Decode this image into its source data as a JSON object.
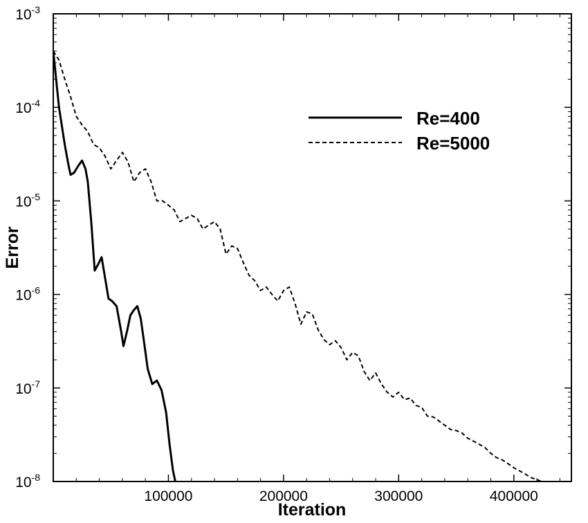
{
  "chart_data": {
    "type": "line",
    "title": "",
    "xlabel": "Iteration",
    "ylabel": "Error",
    "xlim": [
      0,
      450000
    ],
    "ylim": [
      1e-08,
      0.001
    ],
    "yscale": "log",
    "grid": false,
    "legend_position": "top-right",
    "x_ticks": [
      {
        "value": 100000,
        "label": "100000"
      },
      {
        "value": 200000,
        "label": "200000"
      },
      {
        "value": 300000,
        "label": "300000"
      },
      {
        "value": 400000,
        "label": "400000"
      }
    ],
    "y_ticks": [
      {
        "value": 1e-08,
        "base": "10",
        "exp": "-8"
      },
      {
        "value": 1e-07,
        "base": "10",
        "exp": "-7"
      },
      {
        "value": 1e-06,
        "base": "10",
        "exp": "-6"
      },
      {
        "value": 1e-05,
        "base": "10",
        "exp": "-5"
      },
      {
        "value": 0.0001,
        "base": "10",
        "exp": "-4"
      },
      {
        "value": 0.001,
        "base": "10",
        "exp": "-3"
      }
    ],
    "series": [
      {
        "name": "Re=400",
        "style": "solid",
        "color": "#000000",
        "points": [
          [
            0,
            0.0004
          ],
          [
            5000,
            0.0001
          ],
          [
            10000,
            4e-05
          ],
          [
            13000,
            2.5e-05
          ],
          [
            15000,
            1.9e-05
          ],
          [
            18000,
            2e-05
          ],
          [
            22000,
            2.4e-05
          ],
          [
            25000,
            2.7e-05
          ],
          [
            28000,
            2.2e-05
          ],
          [
            30000,
            1.6e-05
          ],
          [
            33000,
            6e-06
          ],
          [
            36000,
            1.8e-06
          ],
          [
            39000,
            2.1e-06
          ],
          [
            42000,
            2.5e-06
          ],
          [
            45000,
            1.5e-06
          ],
          [
            48000,
            9e-07
          ],
          [
            51000,
            8.5e-07
          ],
          [
            55000,
            7.5e-07
          ],
          [
            59000,
            4e-07
          ],
          [
            61000,
            2.8e-07
          ],
          [
            64000,
            4e-07
          ],
          [
            67000,
            6e-07
          ],
          [
            70000,
            6.8e-07
          ],
          [
            73000,
            7.5e-07
          ],
          [
            76000,
            5.5e-07
          ],
          [
            79000,
            3e-07
          ],
          [
            82000,
            1.6e-07
          ],
          [
            86000,
            1.1e-07
          ],
          [
            90000,
            1.2e-07
          ],
          [
            94000,
            9.5e-08
          ],
          [
            98000,
            5.5e-08
          ],
          [
            101000,
            2.5e-08
          ],
          [
            104000,
            1.3e-08
          ],
          [
            106000,
            1e-08
          ]
        ]
      },
      {
        "name": "Re=5000",
        "style": "dashed",
        "color": "#000000",
        "points": [
          [
            0,
            0.0004
          ],
          [
            5000,
            0.00032
          ],
          [
            10000,
            0.0002
          ],
          [
            15000,
            0.00013
          ],
          [
            20000,
            8e-05
          ],
          [
            25000,
            6.5e-05
          ],
          [
            30000,
            5.5e-05
          ],
          [
            35000,
            4e-05
          ],
          [
            40000,
            3.7e-05
          ],
          [
            45000,
            3e-05
          ],
          [
            50000,
            2.2e-05
          ],
          [
            55000,
            2.7e-05
          ],
          [
            60000,
            3.3e-05
          ],
          [
            65000,
            2.6e-05
          ],
          [
            70000,
            1.6e-05
          ],
          [
            75000,
            2e-05
          ],
          [
            80000,
            2.2e-05
          ],
          [
            85000,
            1.6e-05
          ],
          [
            90000,
            1e-05
          ],
          [
            95000,
            1e-05
          ],
          [
            100000,
            9e-06
          ],
          [
            105000,
            8e-06
          ],
          [
            110000,
            6e-06
          ],
          [
            115000,
            6.5e-06
          ],
          [
            120000,
            7e-06
          ],
          [
            125000,
            6.5e-06
          ],
          [
            130000,
            5e-06
          ],
          [
            135000,
            5.5e-06
          ],
          [
            140000,
            6e-06
          ],
          [
            145000,
            5e-06
          ],
          [
            150000,
            2.7e-06
          ],
          [
            155000,
            3.3e-06
          ],
          [
            160000,
            3.1e-06
          ],
          [
            165000,
            2.2e-06
          ],
          [
            170000,
            1.6e-06
          ],
          [
            175000,
            1.4e-06
          ],
          [
            180000,
            1.1e-06
          ],
          [
            185000,
            1.2e-06
          ],
          [
            190000,
            1e-06
          ],
          [
            195000,
            8.5e-07
          ],
          [
            200000,
            1.1e-06
          ],
          [
            205000,
            1.2e-06
          ],
          [
            210000,
            8e-07
          ],
          [
            215000,
            4.8e-07
          ],
          [
            220000,
            6.5e-07
          ],
          [
            225000,
            6.2e-07
          ],
          [
            230000,
            4.2e-07
          ],
          [
            235000,
            3.3e-07
          ],
          [
            240000,
            2.9e-07
          ],
          [
            245000,
            3.2e-07
          ],
          [
            250000,
            2.7e-07
          ],
          [
            255000,
            2e-07
          ],
          [
            260000,
            2.4e-07
          ],
          [
            265000,
            2.2e-07
          ],
          [
            270000,
            1.5e-07
          ],
          [
            275000,
            1.2e-07
          ],
          [
            280000,
            1.45e-07
          ],
          [
            285000,
            1.1e-07
          ],
          [
            290000,
            9e-08
          ],
          [
            295000,
            8e-08
          ],
          [
            300000,
            9e-08
          ],
          [
            305000,
            7.5e-08
          ],
          [
            310000,
            7.8e-08
          ],
          [
            315000,
            6.5e-08
          ],
          [
            320000,
            6.2e-08
          ],
          [
            325000,
            5e-08
          ],
          [
            330000,
            4.9e-08
          ],
          [
            340000,
            4e-08
          ],
          [
            345000,
            3.6e-08
          ],
          [
            350000,
            3.5e-08
          ],
          [
            355000,
            3.3e-08
          ],
          [
            360000,
            2.9e-08
          ],
          [
            365000,
            2.7e-08
          ],
          [
            370000,
            2.5e-08
          ],
          [
            375000,
            2.3e-08
          ],
          [
            380000,
            2e-08
          ],
          [
            385000,
            1.8e-08
          ],
          [
            390000,
            1.7e-08
          ],
          [
            395000,
            1.55e-08
          ],
          [
            400000,
            1.4e-08
          ],
          [
            405000,
            1.3e-08
          ],
          [
            410000,
            1.2e-08
          ],
          [
            415000,
            1.1e-08
          ],
          [
            420000,
            1.05e-08
          ],
          [
            424000,
            1e-08
          ]
        ]
      }
    ]
  }
}
